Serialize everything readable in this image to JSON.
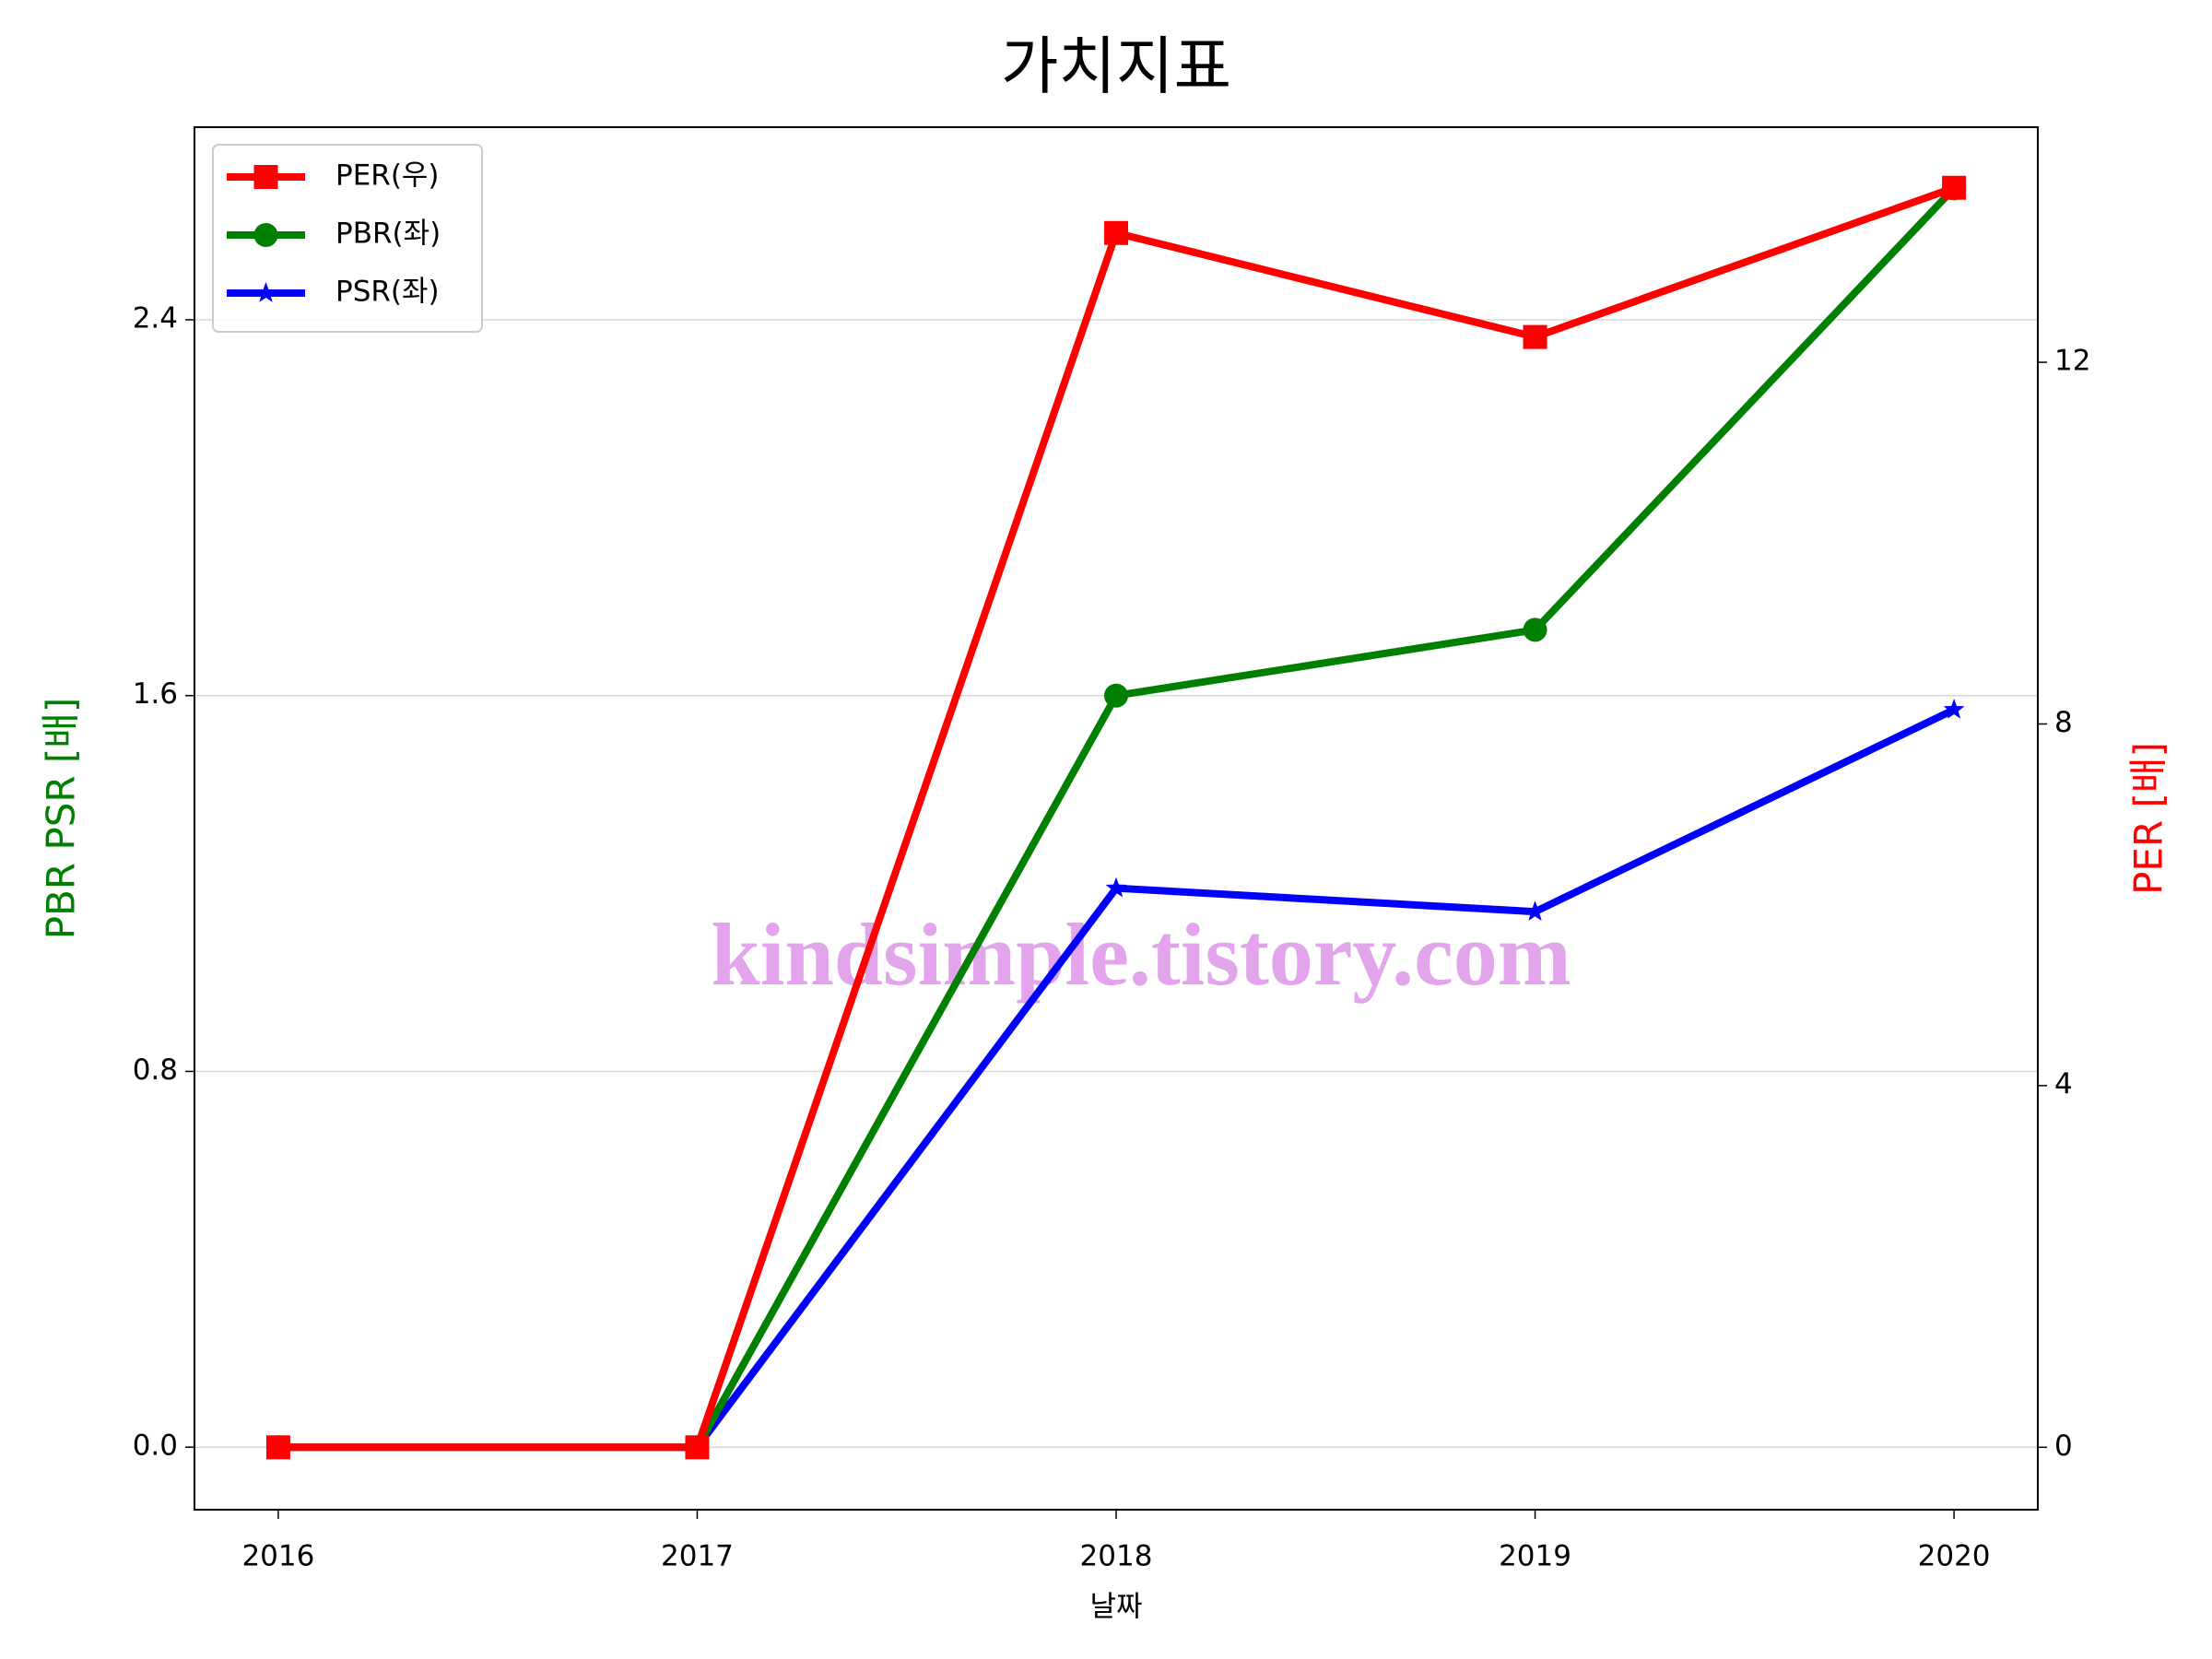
{
  "chart_data": {
    "type": "line",
    "title": "가치지표",
    "x_label": "날짜",
    "y_label": "PBR PSR [배]",
    "y2_label": "PER [배]",
    "watermark": "kindsimple.tistory.com",
    "x": [
      2016,
      2017,
      2018,
      2019,
      2020
    ],
    "xlim": [
      2015.8,
      2020.2
    ],
    "xticks": [
      2016,
      2017,
      2018,
      2019,
      2020
    ],
    "ylim": [
      -0.133,
      2.81
    ],
    "yticks": [
      {
        "value": 0,
        "label": "0.0"
      },
      {
        "value": 0.8,
        "label": "0.8"
      },
      {
        "value": 1.6,
        "label": "1.6"
      },
      {
        "value": 2.4,
        "label": "2.4"
      }
    ],
    "y2lim": [
      -0.69,
      14.6
    ],
    "y2ticks": [
      0,
      4,
      8,
      12
    ],
    "grid": true,
    "legend": "upper left",
    "series": [
      {
        "name": "PER(우)",
        "color": "#ff0000",
        "marker": "square",
        "axis": "y2",
        "values": [
          0,
          0,
          13.43,
          12.28,
          13.93
        ]
      },
      {
        "name": "PBR(좌)",
        "color": "#008000",
        "marker": "circle",
        "values": [
          0,
          0,
          1.6,
          1.74,
          2.68
        ]
      },
      {
        "name": "PSR(좌)",
        "color": "#0000ff",
        "marker": "star",
        "values": [
          0,
          0,
          1.19,
          1.14,
          1.57
        ]
      }
    ]
  }
}
